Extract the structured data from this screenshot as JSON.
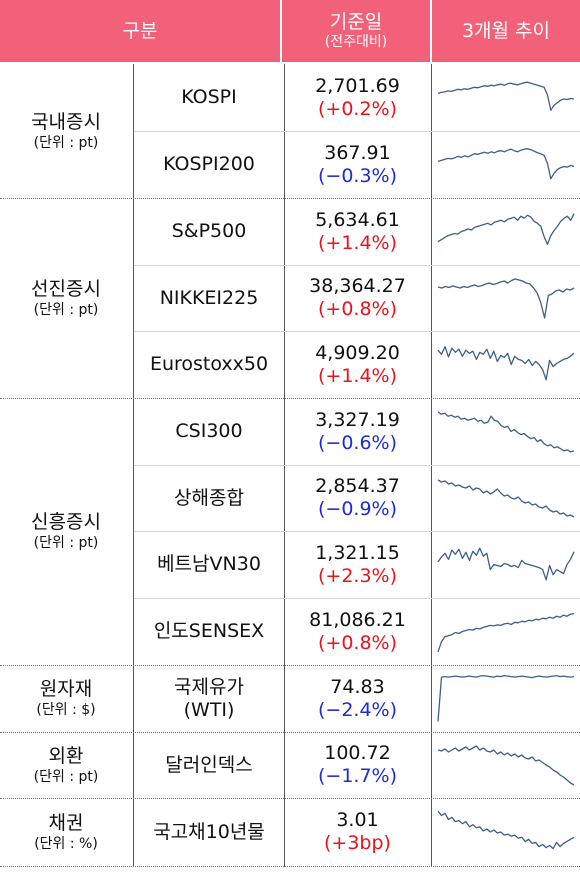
{
  "header": {
    "category": "구분",
    "base_date": "기준일",
    "base_sub": "(전주대비)",
    "trend": "3개월 추이"
  },
  "colors": {
    "header_bg": "#f2607a",
    "up": "#e8141c",
    "down": "#1d2bd6",
    "spark": "#3d5f8a"
  },
  "groups": [
    {
      "name": "국내증시",
      "unit": "(단위 : pt)"
    },
    {
      "name": "선진증시",
      "unit": "(단위 : pt)"
    },
    {
      "name": "신흥증시",
      "unit": "(단위 : pt)"
    },
    {
      "name": "원자재",
      "unit": "(단위 : $)"
    },
    {
      "name": "외환",
      "unit": "(단위 : pt)"
    },
    {
      "name": "채권",
      "unit": "(단위 : %)"
    }
  ],
  "rows": [
    {
      "name": "KOSPI",
      "value": "2,701.69",
      "change": "(+0.2%)",
      "dir": "up"
    },
    {
      "name": "KOSPI200",
      "value": "367.91",
      "change": "(−0.3%)",
      "dir": "down"
    },
    {
      "name": "S&P500",
      "value": "5,634.61",
      "change": "(+1.4%)",
      "dir": "up"
    },
    {
      "name": "NIKKEI225",
      "value": "38,364.27",
      "change": "(+0.8%)",
      "dir": "up"
    },
    {
      "name": "Eurostoxx50",
      "value": "4,909.20",
      "change": "(+1.4%)",
      "dir": "up"
    },
    {
      "name": "CSI300",
      "value": "3,327.19",
      "change": "(−0.6%)",
      "dir": "down"
    },
    {
      "name": "상해종합",
      "value": "2,854.37",
      "change": "(−0.9%)",
      "dir": "down"
    },
    {
      "name": "베트남VN30",
      "value": "1,321.15",
      "change": "(+2.3%)",
      "dir": "up"
    },
    {
      "name": "인도SENSEX",
      "value": "81,086.21",
      "change": "(+0.8%)",
      "dir": "up"
    },
    {
      "name": "국제유가\n(WTI)",
      "value": "74.83",
      "change": "(−2.4%)",
      "dir": "down"
    },
    {
      "name": "달러인덱스",
      "value": "100.72",
      "change": "(−1.7%)",
      "dir": "down"
    },
    {
      "name": "국고채10년물",
      "value": "3.01",
      "change": "(+3bp)",
      "dir": "up"
    }
  ],
  "chart_data": [
    {
      "type": "line",
      "name": "KOSPI",
      "values": [
        58,
        60,
        61,
        63,
        62,
        64,
        66,
        65,
        67,
        66,
        68,
        70,
        69,
        71,
        73,
        72,
        74,
        73,
        75,
        76,
        74,
        77,
        78,
        76,
        75,
        77,
        79,
        80,
        78,
        76,
        74,
        72,
        70,
        55,
        25,
        35,
        40,
        45,
        47,
        46,
        48,
        47
      ]
    },
    {
      "type": "line",
      "name": "KOSPI200",
      "values": [
        56,
        58,
        60,
        62,
        61,
        63,
        66,
        64,
        67,
        65,
        68,
        71,
        70,
        72,
        74,
        72,
        75,
        73,
        76,
        77,
        75,
        78,
        80,
        77,
        75,
        78,
        80,
        81,
        79,
        76,
        73,
        71,
        68,
        52,
        22,
        33,
        40,
        44,
        46,
        45,
        48,
        46
      ]
    },
    {
      "type": "line",
      "name": "S&P500",
      "values": [
        30,
        34,
        38,
        42,
        44,
        46,
        45,
        50,
        52,
        55,
        53,
        58,
        60,
        62,
        64,
        66,
        63,
        68,
        70,
        72,
        69,
        74,
        76,
        78,
        72,
        80,
        76,
        82,
        78,
        70,
        66,
        60,
        40,
        25,
        42,
        52,
        60,
        70,
        76,
        80,
        72,
        85
      ]
    },
    {
      "type": "line",
      "name": "NIKKEI225",
      "values": [
        72,
        70,
        73,
        71,
        74,
        72,
        70,
        73,
        71,
        74,
        76,
        73,
        75,
        78,
        80,
        77,
        79,
        82,
        84,
        80,
        85,
        88,
        86,
        84,
        80,
        78,
        70,
        60,
        40,
        10,
        55,
        58,
        64,
        66,
        62,
        68,
        66,
        70
      ]
    },
    {
      "type": "line",
      "name": "Eurostoxx50",
      "values": [
        78,
        70,
        85,
        65,
        82,
        74,
        80,
        66,
        78,
        72,
        76,
        60,
        74,
        70,
        80,
        62,
        76,
        56,
        68,
        64,
        72,
        50,
        66,
        60,
        58,
        52,
        60,
        48,
        56,
        50,
        40,
        20,
        58,
        46,
        52,
        56,
        60,
        62,
        66,
        72
      ]
    },
    {
      "type": "line",
      "name": "CSI300",
      "values": [
        88,
        84,
        86,
        80,
        82,
        78,
        80,
        74,
        76,
        72,
        74,
        76,
        70,
        72,
        66,
        68,
        80,
        72,
        70,
        62,
        58,
        60,
        50,
        54,
        48,
        44,
        46,
        40,
        36,
        38,
        30,
        34,
        26,
        22,
        24,
        18,
        20,
        16,
        12,
        14,
        10,
        12
      ]
    },
    {
      "type": "line",
      "name": "상해종합",
      "values": [
        86,
        82,
        84,
        78,
        80,
        74,
        76,
        72,
        70,
        74,
        66,
        70,
        68,
        60,
        64,
        58,
        62,
        68,
        60,
        54,
        56,
        50,
        48,
        52,
        44,
        40,
        42,
        36,
        38,
        32,
        30,
        34,
        26,
        22,
        24,
        18,
        20,
        14,
        16,
        12
      ]
    },
    {
      "type": "line",
      "name": "베트남VN30",
      "values": [
        55,
        65,
        72,
        60,
        78,
        70,
        80,
        62,
        74,
        58,
        76,
        68,
        82,
        66,
        72,
        40,
        50,
        48,
        46,
        52,
        50,
        46,
        48,
        44,
        58,
        52,
        50,
        48,
        46,
        44,
        40,
        20,
        48,
        30,
        40,
        36,
        32,
        50,
        60,
        75
      ]
    },
    {
      "type": "line",
      "name": "인도SENSEX",
      "values": [
        10,
        30,
        40,
        42,
        44,
        48,
        46,
        50,
        52,
        54,
        53,
        56,
        55,
        58,
        60,
        62,
        61,
        63,
        62,
        65,
        66,
        64,
        68,
        67,
        70,
        69,
        72,
        71,
        74,
        73,
        76,
        75,
        78,
        76,
        80,
        78,
        82,
        80,
        84,
        85
      ]
    },
    {
      "type": "line",
      "name": "국제유가(WTI)",
      "values": [
        5,
        92,
        93,
        92,
        93,
        94,
        93,
        92,
        93,
        94,
        93,
        92,
        94,
        95,
        94,
        93,
        92,
        94,
        93,
        95,
        94,
        93,
        92,
        93,
        94,
        93,
        92,
        91,
        93,
        94,
        93,
        92,
        93,
        94,
        95,
        93,
        94,
        93,
        92,
        93
      ]
    },
    {
      "type": "line",
      "name": "달러인덱스",
      "values": [
        80,
        78,
        82,
        76,
        80,
        84,
        78,
        82,
        86,
        80,
        84,
        88,
        80,
        84,
        78,
        76,
        80,
        72,
        76,
        70,
        74,
        68,
        72,
        66,
        70,
        64,
        62,
        66,
        58,
        60,
        55,
        50,
        46,
        40,
        36,
        30,
        26,
        20,
        14,
        10
      ]
    },
    {
      "type": "line",
      "name": "국고채10년물",
      "values": [
        90,
        82,
        86,
        74,
        78,
        70,
        72,
        66,
        70,
        60,
        64,
        58,
        60,
        52,
        56,
        50,
        54,
        48,
        50,
        44,
        46,
        42,
        44,
        38,
        40,
        32,
        36,
        28,
        30,
        22,
        26,
        20,
        24,
        18,
        30,
        22,
        28,
        32,
        36,
        40
      ]
    }
  ]
}
